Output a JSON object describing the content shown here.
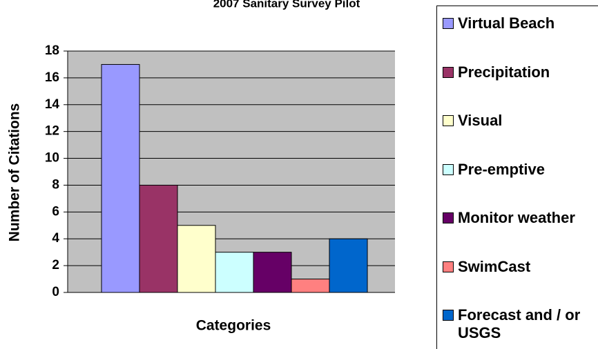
{
  "chart_data": {
    "type": "bar",
    "title": "2007 Sanitary Survey Pilot",
    "y_label": "Number of Citations",
    "x_label": "Categories",
    "series": [
      {
        "name": "Virtual Beach",
        "color": "#9999ff",
        "values": [
          17
        ]
      },
      {
        "name": "Precipitation",
        "color": "#993366",
        "values": [
          8
        ]
      },
      {
        "name": "Visual",
        "color": "#ffffcc",
        "values": [
          5
        ]
      },
      {
        "name": "Pre-emptive",
        "color": "#ccffff",
        "values": [
          3
        ]
      },
      {
        "name": "Monitor weather",
        "color": "#660066",
        "values": [
          3
        ]
      },
      {
        "name": "SwimCast",
        "color": "#ff8080",
        "values": [
          1
        ]
      },
      {
        "name": "Forecast and / or USGS",
        "color": "#0066cc",
        "values": [
          4
        ]
      }
    ],
    "ylim": [
      0,
      18
    ],
    "yticks": [
      0,
      2,
      4,
      6,
      8,
      10,
      12,
      14,
      16,
      18
    ],
    "grid": true,
    "legend": "right"
  }
}
